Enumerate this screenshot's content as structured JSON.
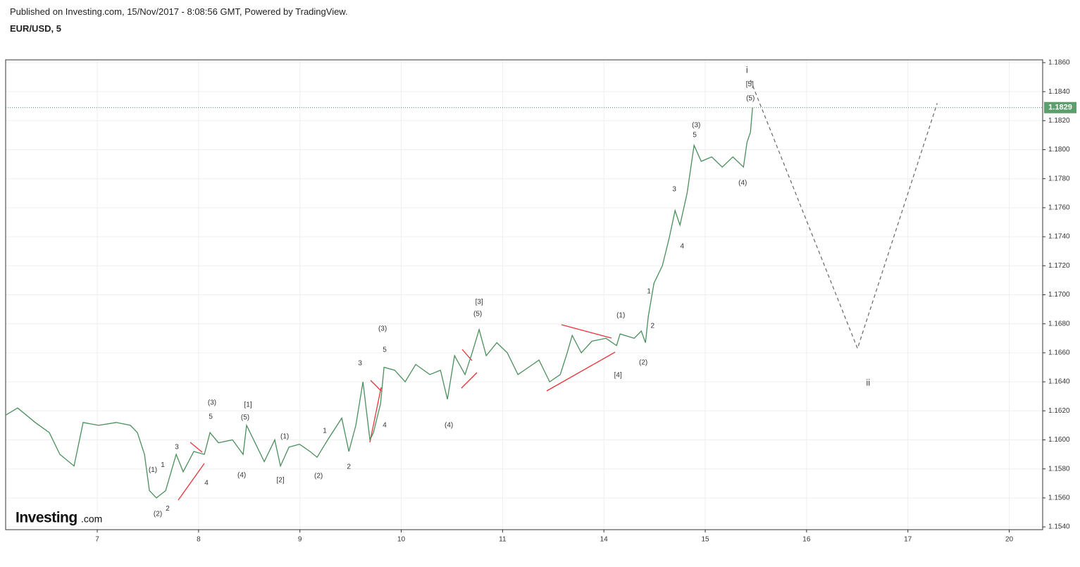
{
  "header": {
    "published": "Published on Investing.com, 15/Nov/2017 - 8:08:56 GMT, Powered by TradingView.",
    "symbol": "EUR/USD, 5"
  },
  "logo": {
    "brand": "Investing",
    "suffix": ".com"
  },
  "chart_data": {
    "type": "line",
    "x": [
      6.096,
      6.214,
      6.388,
      6.527,
      6.631,
      6.771,
      6.861,
      7.014,
      7.188,
      7.327,
      7.396,
      7.466,
      7.515,
      7.584,
      7.675,
      7.779,
      7.848,
      7.953,
      8.057,
      8.113,
      8.196,
      8.335,
      8.44,
      8.474,
      8.579,
      8.648,
      8.752,
      8.808,
      8.892,
      8.996,
      9.1,
      9.17,
      9.274,
      9.413,
      9.483,
      9.552,
      9.622,
      9.691,
      9.726,
      9.796,
      9.83,
      9.935,
      10.039,
      10.143,
      10.282,
      10.387,
      10.456,
      10.526,
      10.63,
      10.7,
      10.769,
      10.839,
      10.943,
      11.047,
      11.152,
      11.256,
      11.36,
      11.465,
      11.569,
      11.638,
      11.687,
      11.777,
      11.882,
      12.021,
      12.125,
      12.16,
      12.299,
      12.369,
      12.41,
      12.438,
      12.494,
      12.577,
      12.647,
      12.702,
      12.751,
      12.821,
      12.89,
      12.96,
      13.064,
      13.168,
      13.273,
      13.377,
      13.412,
      13.446,
      13.467
    ],
    "series": [
      {
        "color": "#4a8f5c",
        "values": [
          1.1617,
          1.1622,
          1.1612,
          1.1605,
          1.159,
          1.1582,
          1.1612,
          1.161,
          1.1612,
          1.161,
          1.1605,
          1.159,
          1.1565,
          1.156,
          1.1565,
          1.159,
          1.1578,
          1.1592,
          1.159,
          1.1605,
          1.1598,
          1.16,
          1.159,
          1.161,
          1.1595,
          1.1585,
          1.16,
          1.1582,
          1.1595,
          1.1597,
          1.1592,
          1.1588,
          1.16,
          1.1615,
          1.1592,
          1.161,
          1.164,
          1.16,
          1.1605,
          1.1625,
          1.165,
          1.1648,
          1.164,
          1.1652,
          1.1645,
          1.1648,
          1.1628,
          1.1658,
          1.1645,
          1.166,
          1.1676,
          1.1658,
          1.1667,
          1.166,
          1.1645,
          1.165,
          1.1655,
          1.164,
          1.1645,
          1.166,
          1.1672,
          1.166,
          1.1668,
          1.167,
          1.1665,
          1.1673,
          1.167,
          1.1675,
          1.1667,
          1.1685,
          1.1708,
          1.172,
          1.174,
          1.1758,
          1.1748,
          1.177,
          1.1803,
          1.1792,
          1.1795,
          1.1788,
          1.1795,
          1.1788,
          1.1805,
          1.1812,
          1.1829
        ]
      }
    ],
    "projection": {
      "color": "#666666",
      "x": [
        13.446,
        14.503,
        15.289
      ],
      "values": [
        1.1848,
        1.1663,
        1.1832
      ]
    },
    "last_price": 1.1829,
    "annotations": [
      {
        "text": "(1)",
        "x": 7.549,
        "y": 1.15793
      },
      {
        "text": "1",
        "x": 7.647,
        "y": 1.15827
      },
      {
        "text": "3",
        "x": 7.786,
        "y": 1.15949
      },
      {
        "text": "(2)",
        "x": 7.598,
        "y": 1.15488
      },
      {
        "text": "2",
        "x": 7.695,
        "y": 1.15526
      },
      {
        "text": "4",
        "x": 8.078,
        "y": 1.15701
      },
      {
        "text": "(3)",
        "x": 8.133,
        "y": 1.16255
      },
      {
        "text": "5",
        "x": 8.12,
        "y": 1.16158
      },
      {
        "text": "[1]",
        "x": 8.488,
        "y": 1.1624
      },
      {
        "text": "(5)",
        "x": 8.46,
        "y": 1.16153
      },
      {
        "text": "(4)",
        "x": 8.426,
        "y": 1.15755
      },
      {
        "text": "(1)",
        "x": 8.85,
        "y": 1.16022
      },
      {
        "text": "[2]",
        "x": 8.808,
        "y": 1.15721
      },
      {
        "text": "(2)",
        "x": 9.184,
        "y": 1.1575
      },
      {
        "text": "1",
        "x": 9.246,
        "y": 1.16061
      },
      {
        "text": "2",
        "x": 9.483,
        "y": 1.15813
      },
      {
        "text": "3",
        "x": 9.594,
        "y": 1.16527
      },
      {
        "text": "(3)",
        "x": 9.816,
        "y": 1.16765
      },
      {
        "text": "5",
        "x": 9.837,
        "y": 1.16619
      },
      {
        "text": "4",
        "x": 9.837,
        "y": 1.16099
      },
      {
        "text": "(4)",
        "x": 10.47,
        "y": 1.16099
      },
      {
        "text": "[3]",
        "x": 10.769,
        "y": 1.16949
      },
      {
        "text": "(5)",
        "x": 10.755,
        "y": 1.16867
      },
      {
        "text": "(1)",
        "x": 12.167,
        "y": 1.16857
      },
      {
        "text": "[4]",
        "x": 12.139,
        "y": 1.16444
      },
      {
        "text": "(2)",
        "x": 12.389,
        "y": 1.16532
      },
      {
        "text": "2",
        "x": 12.48,
        "y": 1.16784
      },
      {
        "text": "1",
        "x": 12.445,
        "y": 1.17022
      },
      {
        "text": "3",
        "x": 12.695,
        "y": 1.17726
      },
      {
        "text": "4",
        "x": 12.772,
        "y": 1.17333
      },
      {
        "text": "(3)",
        "x": 12.911,
        "y": 1.18168
      },
      {
        "text": "5",
        "x": 12.897,
        "y": 1.181
      },
      {
        "text": "(4)",
        "x": 13.37,
        "y": 1.1777
      },
      {
        "text": "i",
        "x": 13.412,
        "y": 1.18547
      },
      {
        "text": "[5]",
        "x": 13.44,
        "y": 1.18449
      },
      {
        "text": "(5)",
        "x": 13.446,
        "y": 1.18352
      },
      {
        "text": "ii",
        "x": 14.608,
        "y": 1.16391
      }
    ],
    "xlim": [
      6.096,
      16.33
    ],
    "xticks": [
      7,
      8,
      9,
      10,
      11,
      {
        "value": 12,
        "label": "14"
      },
      {
        "value": 13,
        "label": "15"
      },
      {
        "value": 14,
        "label": "16"
      },
      {
        "value": 15,
        "label": "17"
      },
      {
        "value": 16,
        "label": "20"
      }
    ],
    "ylim": [
      1.15381,
      1.18619
    ],
    "yticks": [
      {
        "value": 1.154,
        "label": "1.1540"
      },
      {
        "value": 1.156,
        "label": "1.1560"
      },
      {
        "value": 1.158,
        "label": "1.1580"
      },
      {
        "value": 1.16,
        "label": "1.1600"
      },
      {
        "value": 1.162,
        "label": "1.1620"
      },
      {
        "value": 1.164,
        "label": "1.1640"
      },
      {
        "value": 1.166,
        "label": "1.1660"
      },
      {
        "value": 1.168,
        "label": "1.1680"
      },
      {
        "value": 1.17,
        "label": "1.1700"
      },
      {
        "value": 1.172,
        "label": "1.1720"
      },
      {
        "value": 1.174,
        "label": "1.1740"
      },
      {
        "value": 1.176,
        "label": "1.1760"
      },
      {
        "value": 1.178,
        "label": "1.1780"
      },
      {
        "value": 1.18,
        "label": "1.1800"
      },
      {
        "value": 1.182,
        "label": "1.1820"
      },
      {
        "value": 1.184,
        "label": "1.1840"
      },
      {
        "value": 1.186,
        "label": "1.1860"
      }
    ],
    "grid": true
  }
}
